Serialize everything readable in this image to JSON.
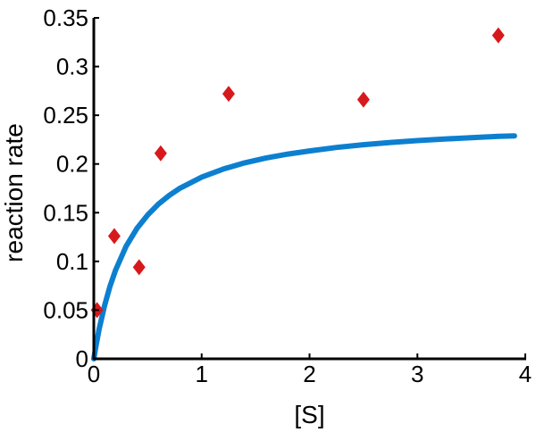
{
  "chart_data": {
    "type": "scatter",
    "xlabel": "[S]",
    "ylabel": "reaction rate",
    "xlim": [
      0,
      4
    ],
    "ylim": [
      0,
      0.35
    ],
    "xticks": [
      0,
      1,
      2,
      3,
      4
    ],
    "yticks": [
      0,
      0.05,
      0.1,
      0.15,
      0.2,
      0.25,
      0.3,
      0.35
    ],
    "x_tick_labels": [
      "0",
      "1",
      "2",
      "3",
      "4"
    ],
    "y_tick_labels": [
      "0",
      "0.05",
      "0.1",
      "0.15",
      "0.2",
      "0.25",
      "0.3",
      "0.35"
    ],
    "grid": false,
    "series": [
      {
        "kind": "scatter",
        "marker": "diamond",
        "color": "#d7191c",
        "x": [
          0.03,
          0.19,
          0.42,
          0.62,
          1.25,
          2.5,
          3.75
        ],
        "y": [
          0.05,
          0.126,
          0.094,
          0.211,
          0.272,
          0.266,
          0.332
        ]
      },
      {
        "kind": "line",
        "color": "#0d7fd0",
        "x": [
          0,
          0.02,
          0.05,
          0.1,
          0.15,
          0.2,
          0.3,
          0.4,
          0.5,
          0.6,
          0.7,
          0.8,
          1.0,
          1.2,
          1.4,
          1.6,
          1.8,
          2.0,
          2.25,
          2.5,
          2.75,
          3.0,
          3.25,
          3.5,
          3.75,
          3.9
        ],
        "y": [
          0,
          0.0131,
          0.0306,
          0.0548,
          0.0744,
          0.0906,
          0.1156,
          0.1339,
          0.1478,
          0.1589,
          0.1678,
          0.1752,
          0.1865,
          0.1948,
          0.2012,
          0.2062,
          0.2102,
          0.2134,
          0.217,
          0.2198,
          0.2221,
          0.224,
          0.2256,
          0.227,
          0.2283,
          0.2289
        ]
      }
    ]
  }
}
